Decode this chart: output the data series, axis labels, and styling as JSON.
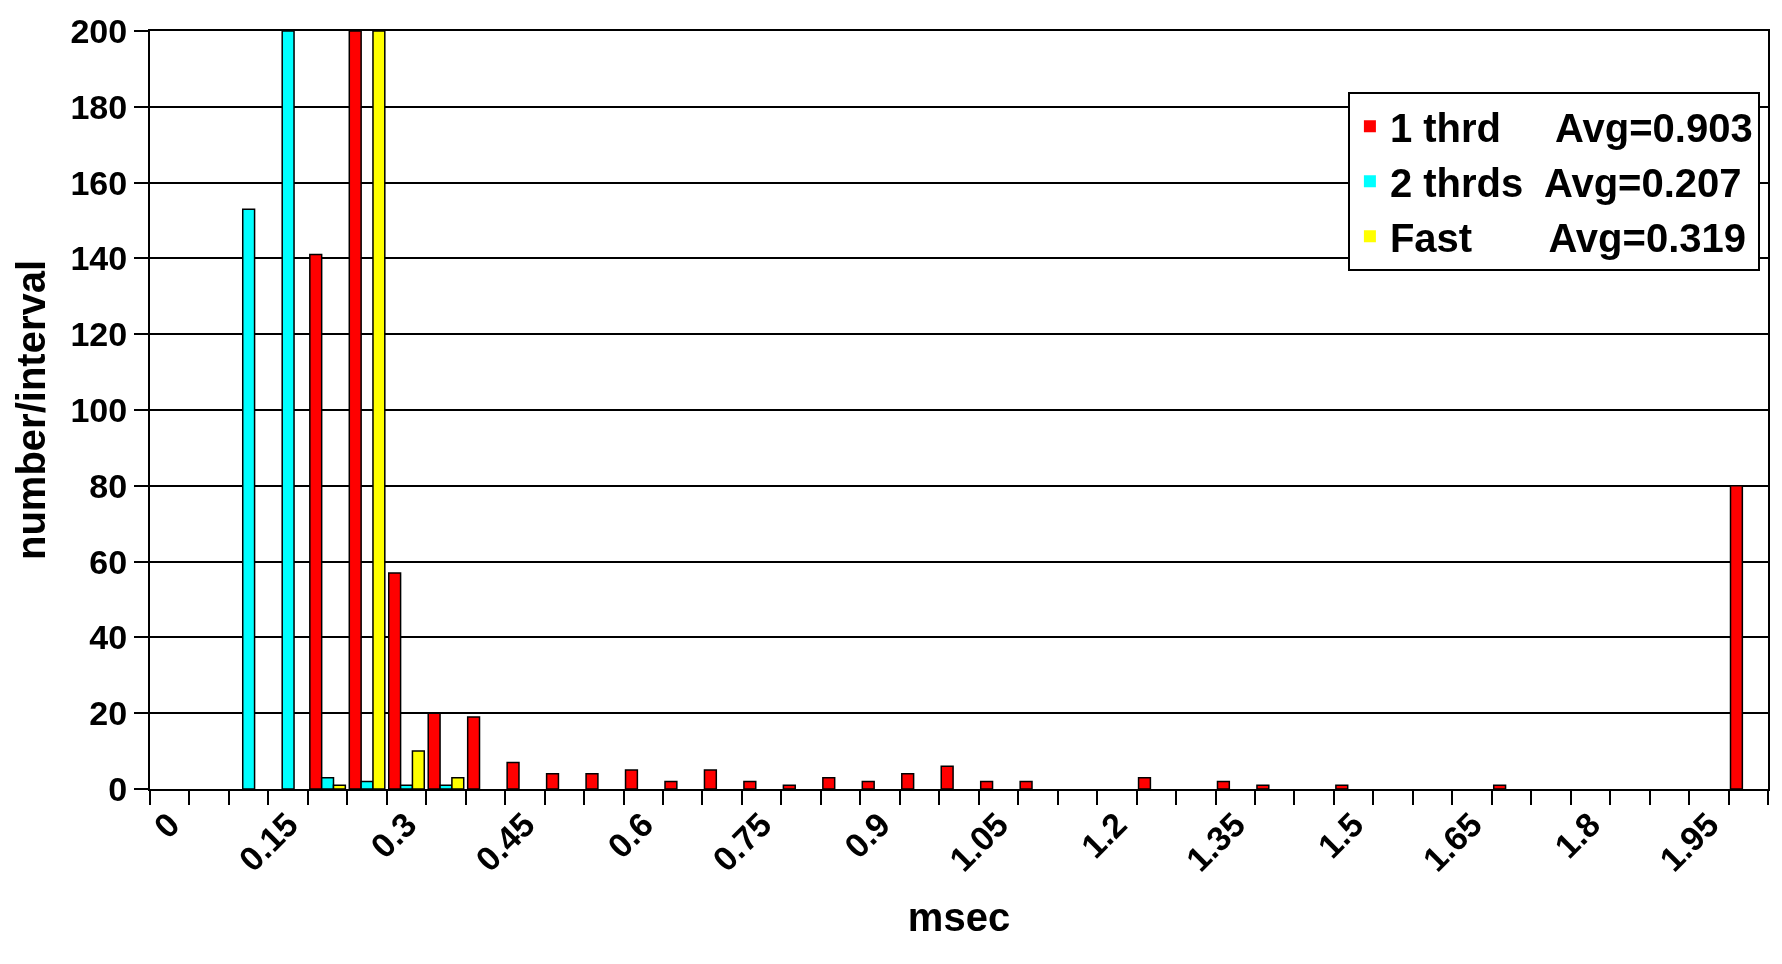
{
  "chart_data": {
    "type": "bar",
    "xlabel": "msec",
    "ylabel": "number/interval",
    "categories": [
      "0",
      null,
      null,
      "0.15",
      null,
      null,
      "0.3",
      null,
      null,
      "0.45",
      null,
      null,
      "0.6",
      null,
      null,
      "0.75",
      null,
      null,
      "0.9",
      null,
      null,
      "1.05",
      null,
      null,
      "1.2",
      null,
      null,
      "1.35",
      null,
      null,
      "1.5",
      null,
      null,
      "1.65",
      null,
      null,
      "1.8",
      null,
      null,
      "1.95",
      null
    ],
    "series": [
      {
        "name": "1 thrd     Avg=0.903",
        "color": "#ff0000",
        "values": [
          0,
          0,
          0,
          0,
          141,
          200,
          57,
          20,
          19,
          7,
          4,
          4,
          5,
          2,
          5,
          2,
          1,
          3,
          2,
          4,
          6,
          2,
          2,
          0,
          0,
          3,
          0,
          2,
          1,
          0,
          1,
          0,
          0,
          0,
          1,
          0,
          0,
          0,
          0,
          0,
          80
        ]
      },
      {
        "name": "2 thrds  Avg=0.207",
        "color": "#00ffff",
        "values": [
          0,
          0,
          153,
          200,
          3,
          2,
          1,
          1,
          0,
          0,
          0,
          0,
          0,
          0,
          0,
          0,
          0,
          0,
          0,
          0,
          0,
          0,
          0,
          0,
          0,
          0,
          0,
          0,
          0,
          0,
          0,
          0,
          0,
          0,
          0,
          0,
          0,
          0,
          0,
          0,
          0
        ]
      },
      {
        "name": "Fast       Avg=0.319",
        "color": "#ffff00",
        "values": [
          0,
          0,
          0,
          0,
          1,
          200,
          10,
          3,
          0,
          0,
          0,
          0,
          0,
          0,
          0,
          0,
          0,
          0,
          0,
          0,
          0,
          0,
          0,
          0,
          0,
          0,
          0,
          0,
          0,
          0,
          0,
          0,
          0,
          0,
          0,
          0,
          0,
          0,
          0,
          0,
          0
        ]
      }
    ],
    "ylim": [
      0,
      200
    ],
    "yticks": [
      0,
      20,
      40,
      60,
      80,
      100,
      120,
      140,
      160,
      180,
      200
    ],
    "grid": "y",
    "legend": "top right"
  }
}
